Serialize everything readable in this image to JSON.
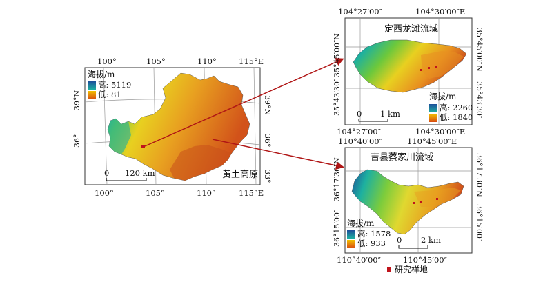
{
  "main_map": {
    "legend_title": "海拔/m",
    "legend_high": "高: 5119",
    "legend_low": "低: 81",
    "scale_zero": "0",
    "scale_label": "120 km",
    "region_label": "黄土高原",
    "top_ticks": [
      "100°",
      "105°",
      "110°",
      "115°E"
    ],
    "bottom_ticks": [
      "100°",
      "105°",
      "110°",
      "115°E"
    ],
    "left_ticks": [
      "39°N",
      "36°"
    ],
    "right_ticks": [
      "39°N",
      "36°",
      "33°"
    ]
  },
  "inset_top": {
    "title": "定西龙滩流域",
    "legend_title": "海拔/m",
    "legend_high": "高: 2260",
    "legend_low": "低: 1840",
    "scale_zero": "0",
    "scale_label": "1 km",
    "top_ticks": [
      "104°27′00″",
      "104°30′00″E"
    ],
    "bottom_ticks": [
      "104°27′00″",
      "104°30′00″E"
    ],
    "left_ticks": [
      "35°45′00″N",
      "35°43′30″"
    ],
    "right_ticks": [
      "35°45′00″N",
      "35°43′30″"
    ]
  },
  "inset_bottom": {
    "title": "吉县蔡家川流域",
    "legend_title": "海拔/m",
    "legend_high": "高: 1578",
    "legend_low": "低: 933",
    "scale_zero": "0",
    "scale_label": "2 km",
    "top_ticks": [
      "110°40′00″",
      "110°45′00″E"
    ],
    "bottom_ticks": [
      "110°40′00″",
      "110°45′00″"
    ],
    "left_ticks": [
      "36°17′30″N",
      "36°15′00″"
    ],
    "right_ticks": [
      "36°17′30″N",
      "36°15′00″"
    ]
  },
  "sample_legend": {
    "label": "研究样地",
    "color": "#c0141c"
  },
  "colors": {
    "high": "#1d4e9a",
    "mid_high": "#1db0a0",
    "mid": "#7ccc3c",
    "mid_low": "#f2c200",
    "low": "#d94b10",
    "arrow": "#b01515"
  }
}
